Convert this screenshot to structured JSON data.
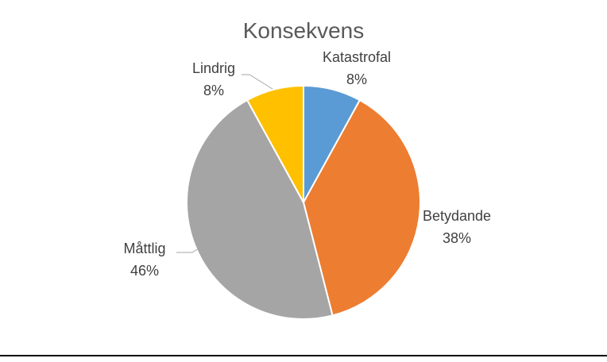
{
  "chart_data": {
    "type": "pie",
    "title": "Konsekvens",
    "slices": [
      {
        "label": "Katastrofal",
        "value": 8,
        "value_label": "8%",
        "color": "#5B9BD5"
      },
      {
        "label": "Betydande",
        "value": 38,
        "value_label": "38%",
        "color": "#ED7D31"
      },
      {
        "label": "Måttlig",
        "value": 46,
        "value_label": "46%",
        "color": "#A5A5A5"
      },
      {
        "label": "Lindrig",
        "value": 8,
        "value_label": "8%",
        "color": "#FFC000"
      }
    ],
    "start_angle_deg": 0,
    "direction": "clockwise",
    "legend": "none",
    "data_labels": "outside"
  }
}
